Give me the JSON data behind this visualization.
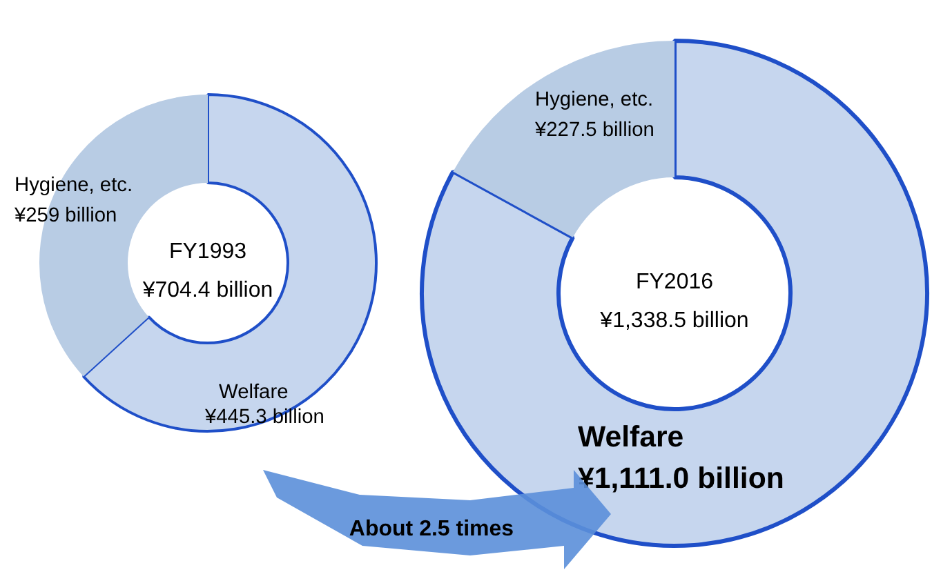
{
  "chart_data": [
    {
      "type": "donut",
      "title": "FY1993",
      "subtitle": "¥704.4 billion",
      "categories": [
        "Welfare",
        "Hygiene, etc."
      ],
      "values": [
        445.3,
        259
      ],
      "colors": [
        "#c6d6ee",
        "#b8cce4"
      ],
      "value_labels": [
        "¥445.3 billion",
        "¥259 billion"
      ]
    },
    {
      "type": "donut",
      "title": "FY2016",
      "subtitle": "¥1,338.5 billion",
      "categories": [
        "Welfare",
        "Hygiene, etc."
      ],
      "values": [
        1111.0,
        227.5
      ],
      "colors": [
        "#c6d6ee",
        "#b8cce4"
      ],
      "value_labels": [
        "¥1,111.0 billion",
        "¥227.5 billion"
      ],
      "annotations": [
        "About 2.5 times"
      ]
    }
  ]
}
